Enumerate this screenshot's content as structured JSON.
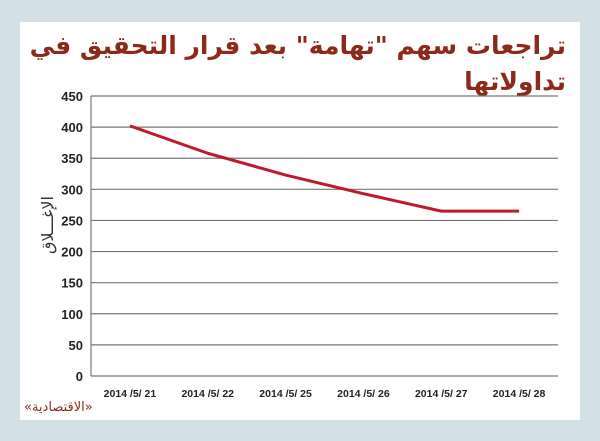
{
  "header": {
    "title": "تراجعات سهم \"تهامة\" بعد قرار التحقيق في تداولاتها"
  },
  "footer": {
    "source": "«الاقتصادية»"
  },
  "colors": {
    "background": "#d3e0e5",
    "panel": "#ffffff",
    "title": "#8b2a1a",
    "line": "#c0182f",
    "grid": "#777777"
  },
  "chart_data": {
    "type": "line",
    "title": "تراجعات سهم \"تهامة\" بعد قرار التحقيق في تداولاتها",
    "xlabel": "",
    "ylabel": "الإغـــلاق",
    "categories": [
      "2014 /5/ 21",
      "2014 /5/ 22",
      "2014 /5/ 25",
      "2014 /5/ 26",
      "2014 /5/ 27",
      "2014 /5/ 28"
    ],
    "series": [
      {
        "name": "الإغلاق",
        "values": [
          402,
          358,
          323,
          293,
          265,
          265
        ]
      }
    ],
    "ylim": [
      0,
      450
    ],
    "yticks": [
      0,
      50,
      100,
      150,
      200,
      250,
      300,
      350,
      400,
      450
    ],
    "grid": true,
    "legend": "none"
  }
}
